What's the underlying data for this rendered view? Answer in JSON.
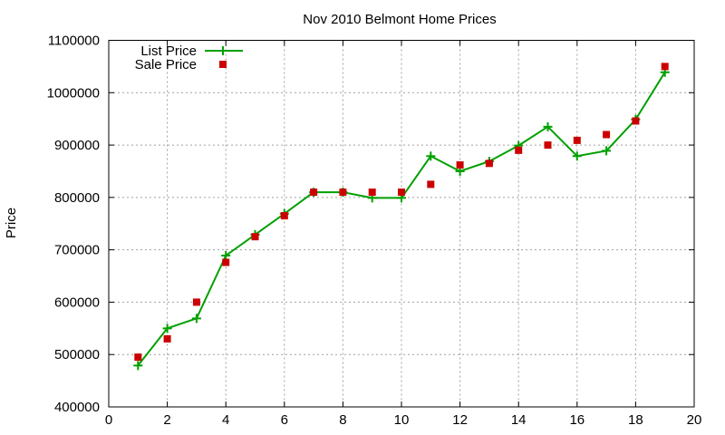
{
  "chart_data": {
    "type": "line",
    "title": "Nov 2010 Belmont Home Prices",
    "xlabel": "",
    "ylabel": "Price",
    "xlim": [
      0,
      20
    ],
    "ylim": [
      400000,
      1100000
    ],
    "xticks": [
      0,
      2,
      4,
      6,
      8,
      10,
      12,
      14,
      16,
      18,
      20
    ],
    "yticks": [
      400000,
      500000,
      600000,
      700000,
      800000,
      900000,
      1000000,
      1100000
    ],
    "grid": true,
    "legend_position": "top-left",
    "series": [
      {
        "name": "List Price",
        "style": "line-with-plus-markers",
        "color": "#00a000",
        "x": [
          1,
          2,
          3,
          4,
          5,
          6,
          7,
          8,
          9,
          10,
          11,
          12,
          13,
          14,
          15,
          16,
          17,
          18,
          19
        ],
        "y": [
          479000,
          550000,
          569000,
          689000,
          729000,
          769000,
          810000,
          810000,
          799000,
          799000,
          879000,
          850000,
          869000,
          899000,
          935000,
          879000,
          889000,
          949000,
          1039000
        ]
      },
      {
        "name": "Sale Price",
        "style": "square-markers",
        "color": "#cc0000",
        "x": [
          1,
          2,
          3,
          4,
          5,
          6,
          7,
          8,
          9,
          10,
          11,
          12,
          13,
          14,
          15,
          16,
          17,
          18,
          19
        ],
        "y": [
          495000,
          530000,
          600000,
          676000,
          725000,
          765000,
          810000,
          810000,
          810000,
          810000,
          825000,
          862000,
          865000,
          890000,
          900000,
          909000,
          920000,
          946000,
          1050000
        ]
      }
    ]
  }
}
